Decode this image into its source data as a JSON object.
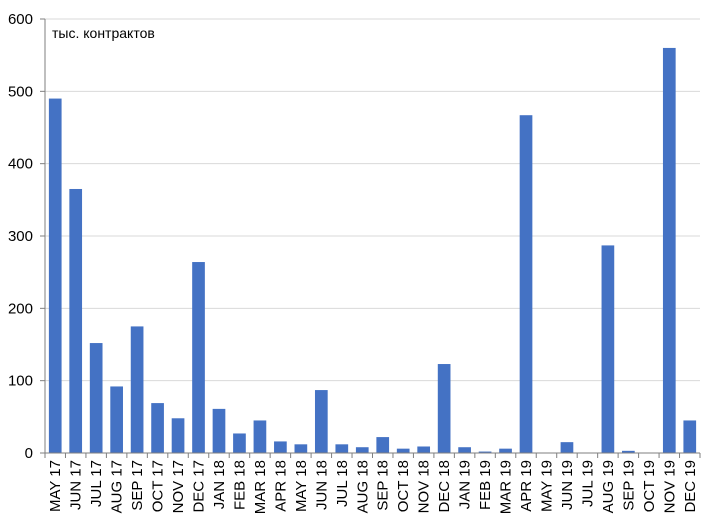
{
  "chart_data": {
    "type": "bar",
    "unit_label": "тыс. контрактов",
    "categories": [
      "MAY 17",
      "JUN 17",
      "JUL 17",
      "AUG 17",
      "SEP 17",
      "OCT 17",
      "NOV 17",
      "DEC 17",
      "JAN 18",
      "FEB 18",
      "MAR 18",
      "APR 18",
      "MAY 18",
      "JUN 18",
      "JUL 18",
      "AUG 18",
      "SEP 18",
      "OCT 18",
      "NOV 18",
      "DEC 18",
      "JAN 19",
      "FEB 19",
      "MAR 19",
      "APR 19",
      "MAY 19",
      "JUN 19",
      "JUL 19",
      "AUG 19",
      "SEP 19",
      "OCT 19",
      "NOV 19",
      "DEC 19"
    ],
    "values": [
      490,
      365,
      152,
      92,
      175,
      69,
      48,
      264,
      61,
      27,
      45,
      16,
      12,
      87,
      12,
      8,
      22,
      6,
      9,
      123,
      8,
      2,
      6,
      467,
      0,
      15,
      0,
      287,
      3,
      0,
      560,
      45
    ],
    "ylim": [
      0,
      600
    ],
    "yticks": [
      "0",
      "100",
      "200",
      "300",
      "400",
      "500",
      "600"
    ],
    "grid": true,
    "legend": "none",
    "bar_color": "#4472c4",
    "grid_color": "#d9d9d9",
    "axis_color": "#7f7f7f"
  }
}
